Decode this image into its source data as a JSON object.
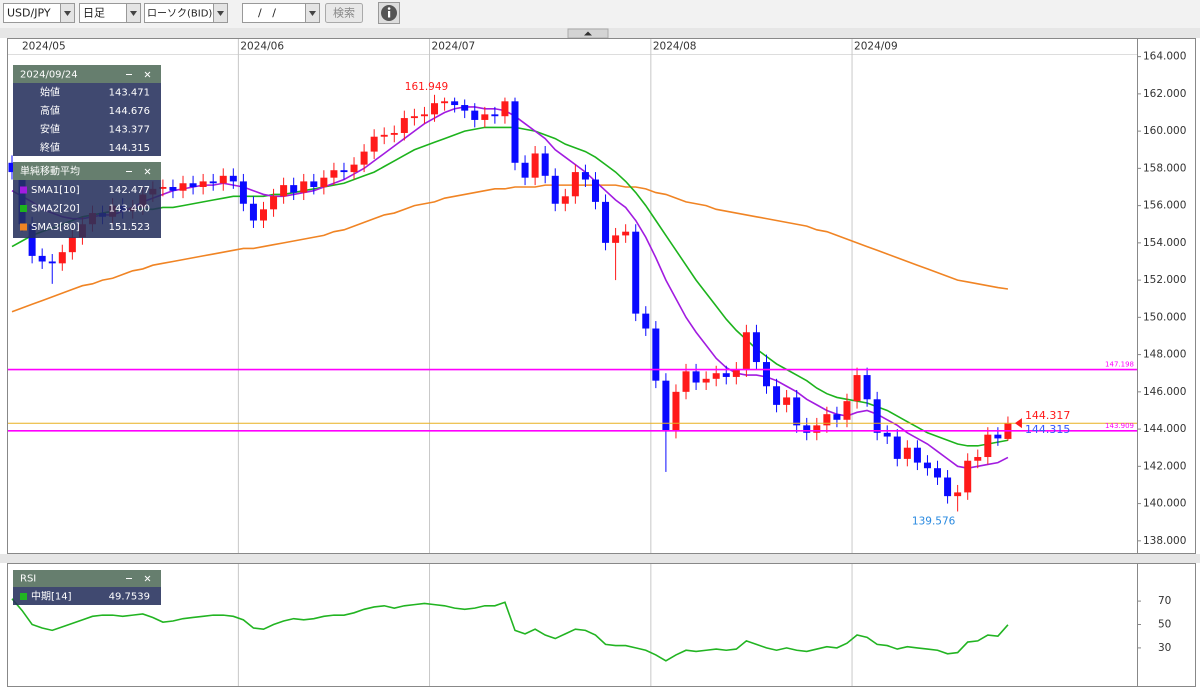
{
  "toolbar": {
    "symbol": "USD/JPY",
    "period": "日足",
    "chart_kind": "ローソク(BID)",
    "date_input": "/   /",
    "search_button": "検索"
  },
  "info_box": {
    "date": "2024/09/24",
    "open_label": "始値",
    "high_label": "高値",
    "low_label": "安値",
    "close_label": "終値"
  },
  "chart_data": [
    {
      "type": "candlestick",
      "categories": [
        "2024/05",
        null,
        null,
        null,
        null,
        null,
        null,
        null,
        null,
        null,
        null,
        null,
        null,
        null,
        null,
        null,
        null,
        null,
        null,
        null,
        null,
        null,
        null,
        "2024/06",
        null,
        null,
        null,
        null,
        null,
        null,
        null,
        null,
        null,
        null,
        null,
        null,
        null,
        null,
        null,
        null,
        null,
        null,
        "2024/07",
        null,
        null,
        null,
        null,
        null,
        null,
        null,
        null,
        null,
        null,
        null,
        null,
        null,
        null,
        null,
        null,
        null,
        null,
        null,
        null,
        null,
        "2024/08",
        null,
        null,
        null,
        null,
        null,
        null,
        null,
        null,
        null,
        null,
        null,
        null,
        null,
        null,
        null,
        null,
        null,
        null,
        null,
        "2024/09",
        null,
        null,
        null,
        null,
        null,
        null,
        null,
        null,
        null,
        null,
        null,
        null,
        null,
        null,
        null
      ],
      "open": [
        158.3,
        157.8,
        155.0,
        153.3,
        153.0,
        152.9,
        153.5,
        154.3,
        155.0,
        155.6,
        155.4,
        156.0,
        155.7,
        155.9,
        156.6,
        156.9,
        157.0,
        156.8,
        157.2,
        157.0,
        157.3,
        157.2,
        157.6,
        157.3,
        156.1,
        155.2,
        155.8,
        156.5,
        157.1,
        156.7,
        157.3,
        157.0,
        157.5,
        157.9,
        157.8,
        158.2,
        158.9,
        159.7,
        159.8,
        159.9,
        160.7,
        160.8,
        160.9,
        161.5,
        161.6,
        161.4,
        161.1,
        160.6,
        160.9,
        160.8,
        161.6,
        158.3,
        157.5,
        158.8,
        157.6,
        156.1,
        156.5,
        157.8,
        157.4,
        156.2,
        154.0,
        154.4,
        154.6,
        150.2,
        149.4,
        146.6,
        143.9,
        146.0,
        147.1,
        146.5,
        146.7,
        147.0,
        146.8,
        147.2,
        149.2,
        147.6,
        146.3,
        145.3,
        145.7,
        144.2,
        143.8,
        144.2,
        144.8,
        144.5,
        145.5,
        146.9,
        145.6,
        143.8,
        143.6,
        142.4,
        143.0,
        142.2,
        141.9,
        141.4,
        140.4,
        140.6,
        142.3,
        142.5,
        143.7,
        143.471
      ],
      "high": [
        158.7,
        158.2,
        155.4,
        153.7,
        153.4,
        153.9,
        154.7,
        155.4,
        156.0,
        156.0,
        156.4,
        156.4,
        156.3,
        157.0,
        157.3,
        157.4,
        157.4,
        157.6,
        157.6,
        157.7,
        157.7,
        158.0,
        158.0,
        157.7,
        156.5,
        156.2,
        156.9,
        157.5,
        157.5,
        157.7,
        157.7,
        157.9,
        158.3,
        158.3,
        158.6,
        159.3,
        160.1,
        160.2,
        160.3,
        161.1,
        161.2,
        161.3,
        161.949,
        161.8,
        161.8,
        161.7,
        161.5,
        161.3,
        161.3,
        161.8,
        161.8,
        158.7,
        159.2,
        159.2,
        158.0,
        156.9,
        158.2,
        158.2,
        157.8,
        156.6,
        154.8,
        155.0,
        155.0,
        150.6,
        149.8,
        147.0,
        146.4,
        147.5,
        147.5,
        147.1,
        147.4,
        147.4,
        147.6,
        149.6,
        149.6,
        148.0,
        146.7,
        146.1,
        146.1,
        144.6,
        144.6,
        145.2,
        145.2,
        145.9,
        147.3,
        147.3,
        146.0,
        144.2,
        144.0,
        143.4,
        143.4,
        142.6,
        142.3,
        141.8,
        141.0,
        142.7,
        142.9,
        144.1,
        144.1,
        144.676
      ],
      "low": [
        157.4,
        154.6,
        152.9,
        152.6,
        151.8,
        152.5,
        153.1,
        153.9,
        154.6,
        155.0,
        155.0,
        155.3,
        155.3,
        155.5,
        156.2,
        156.5,
        156.4,
        156.4,
        156.6,
        156.6,
        156.8,
        156.8,
        156.9,
        155.7,
        154.8,
        154.8,
        155.4,
        156.1,
        156.3,
        156.3,
        156.6,
        156.6,
        157.1,
        157.4,
        157.4,
        157.8,
        158.5,
        159.3,
        159.4,
        159.5,
        160.3,
        160.4,
        160.5,
        161.1,
        161.0,
        160.7,
        160.2,
        160.2,
        160.4,
        160.4,
        157.9,
        157.1,
        157.1,
        157.2,
        155.7,
        155.7,
        156.1,
        157.0,
        155.8,
        153.6,
        152.0,
        154.0,
        149.8,
        149.0,
        146.2,
        141.7,
        143.5,
        145.6,
        146.1,
        146.1,
        146.3,
        146.4,
        146.4,
        146.8,
        147.2,
        145.9,
        144.9,
        144.9,
        143.8,
        143.4,
        143.4,
        143.8,
        144.1,
        144.1,
        145.1,
        145.2,
        143.4,
        143.2,
        142.0,
        142.0,
        141.8,
        141.5,
        141.0,
        140.0,
        139.576,
        140.2,
        141.9,
        142.1,
        143.1,
        143.377
      ],
      "close": [
        157.8,
        155.0,
        153.3,
        153.0,
        152.9,
        153.5,
        154.3,
        155.0,
        155.6,
        155.4,
        156.0,
        155.7,
        155.9,
        156.6,
        156.9,
        157.0,
        156.8,
        157.2,
        157.0,
        157.3,
        157.2,
        157.6,
        157.3,
        156.1,
        155.2,
        155.8,
        156.5,
        157.1,
        156.7,
        157.3,
        157.0,
        157.5,
        157.9,
        157.8,
        158.2,
        158.9,
        159.7,
        159.8,
        159.9,
        160.7,
        160.8,
        160.9,
        161.5,
        161.6,
        161.4,
        161.1,
        160.6,
        160.9,
        160.8,
        161.6,
        158.3,
        157.5,
        158.8,
        157.6,
        156.1,
        156.5,
        157.8,
        157.4,
        156.2,
        154.0,
        154.4,
        154.6,
        150.2,
        149.4,
        146.6,
        143.9,
        146.0,
        147.1,
        146.5,
        146.7,
        147.0,
        146.8,
        147.2,
        149.2,
        147.6,
        146.3,
        145.3,
        145.7,
        144.2,
        143.8,
        144.2,
        144.8,
        144.5,
        145.5,
        146.9,
        145.6,
        143.8,
        143.6,
        142.4,
        143.0,
        142.2,
        141.9,
        141.4,
        140.4,
        140.6,
        142.3,
        142.5,
        143.7,
        143.5,
        144.315
      ],
      "up_color": "#ff1a1a",
      "down_color": "#0a0aff",
      "legend_title": "単純移動平均",
      "series": [
        {
          "name": "SMA1[10]",
          "color": "#a21ce0",
          "values": [
            156.8,
            156.5,
            156.2,
            155.8,
            155.6,
            155.4,
            155.3,
            155.3,
            155.4,
            155.5,
            155.5,
            155.7,
            155.9,
            156.2,
            156.4,
            156.6,
            156.8,
            156.9,
            157.0,
            157.1,
            157.1,
            157.2,
            157.1,
            157.0,
            156.8,
            156.6,
            156.5,
            156.5,
            156.6,
            156.7,
            156.8,
            157.0,
            157.2,
            157.4,
            157.7,
            158.0,
            158.4,
            158.8,
            159.2,
            159.6,
            160.0,
            160.4,
            160.7,
            161.0,
            161.2,
            161.3,
            161.3,
            161.2,
            161.2,
            161.1,
            160.8,
            160.4,
            160.0,
            159.6,
            159.0,
            158.6,
            158.2,
            157.8,
            157.3,
            156.8,
            156.3,
            155.9,
            155.2,
            154.3,
            153.2,
            152.0,
            151.0,
            150.0,
            149.2,
            148.5,
            147.8,
            147.3,
            147.0,
            146.9,
            146.9,
            146.8,
            146.6,
            146.3,
            146.0,
            145.6,
            145.3,
            145.0,
            144.8,
            144.7,
            144.9,
            145.0,
            144.8,
            144.5,
            144.2,
            143.8,
            143.5,
            143.2,
            142.8,
            142.4,
            142.0,
            141.9,
            142.0,
            142.1,
            142.2,
            142.477
          ]
        },
        {
          "name": "SMA2[20]",
          "color": "#1db31d",
          "values": [
            153.8,
            154.1,
            154.4,
            154.6,
            154.8,
            155.0,
            155.2,
            155.4,
            155.5,
            155.6,
            155.7,
            155.8,
            155.8,
            155.8,
            155.8,
            155.9,
            155.9,
            156.0,
            156.1,
            156.2,
            156.3,
            156.4,
            156.5,
            156.5,
            156.5,
            156.5,
            156.6,
            156.6,
            156.7,
            156.8,
            156.9,
            157.0,
            157.1,
            157.2,
            157.4,
            157.6,
            157.8,
            158.1,
            158.4,
            158.7,
            159.0,
            159.2,
            159.4,
            159.6,
            159.8,
            160.0,
            160.1,
            160.2,
            160.2,
            160.2,
            160.2,
            160.1,
            160.0,
            159.8,
            159.6,
            159.3,
            159.1,
            158.9,
            158.6,
            158.2,
            157.8,
            157.3,
            156.7,
            156.0,
            155.2,
            154.4,
            153.6,
            152.8,
            152.0,
            151.3,
            150.6,
            149.9,
            149.3,
            148.8,
            148.3,
            147.9,
            147.5,
            147.2,
            146.9,
            146.6,
            146.2,
            145.9,
            145.7,
            145.6,
            145.5,
            145.4,
            145.2,
            145.0,
            144.7,
            144.4,
            144.1,
            143.8,
            143.6,
            143.4,
            143.2,
            143.1,
            143.1,
            143.2,
            143.3,
            143.4
          ],
          "value_labels": [
            null,
            null,
            null,
            null,
            null,
            null,
            null,
            null,
            null,
            null,
            null,
            null,
            null,
            null,
            null,
            null,
            null,
            null,
            null,
            null,
            null,
            null,
            null,
            null,
            null,
            null,
            null,
            null,
            null,
            null,
            null,
            null,
            null,
            null,
            null,
            null,
            null,
            null,
            null,
            null,
            null,
            null,
            null,
            null,
            null,
            null,
            null,
            null,
            null,
            null,
            null,
            null,
            null,
            null,
            null,
            null,
            null,
            null,
            null,
            null,
            null,
            null,
            null,
            null,
            null,
            null,
            null,
            null,
            null,
            null,
            null,
            null,
            null,
            null,
            null,
            null,
            null,
            null,
            null,
            null,
            null,
            null,
            null,
            null,
            null,
            null,
            null,
            null,
            null,
            null,
            null,
            null,
            null,
            null,
            null,
            null,
            null,
            null,
            null,
            "143.400"
          ]
        },
        {
          "name": "SMA3[80]",
          "color": "#f08424",
          "values": [
            150.3,
            150.5,
            150.7,
            150.9,
            151.1,
            151.3,
            151.5,
            151.7,
            151.8,
            152.0,
            152.1,
            152.3,
            152.5,
            152.6,
            152.8,
            152.9,
            153.0,
            153.1,
            153.2,
            153.3,
            153.4,
            153.5,
            153.6,
            153.7,
            153.7,
            153.8,
            153.9,
            154.0,
            154.1,
            154.2,
            154.3,
            154.4,
            154.6,
            154.7,
            154.9,
            155.1,
            155.3,
            155.5,
            155.6,
            155.8,
            156.0,
            156.1,
            156.2,
            156.4,
            156.5,
            156.6,
            156.7,
            156.8,
            156.9,
            156.9,
            157.0,
            157.0,
            157.0,
            157.1,
            157.1,
            157.1,
            157.1,
            157.1,
            157.1,
            157.1,
            157.1,
            157.0,
            157.0,
            156.9,
            156.7,
            156.6,
            156.4,
            156.2,
            156.1,
            156.0,
            155.8,
            155.7,
            155.6,
            155.5,
            155.4,
            155.3,
            155.2,
            155.1,
            155.0,
            154.9,
            154.7,
            154.6,
            154.4,
            154.2,
            154.0,
            153.8,
            153.6,
            153.4,
            153.2,
            153.0,
            152.8,
            152.6,
            152.4,
            152.2,
            152.0,
            151.9,
            151.8,
            151.7,
            151.6,
            151.523
          ]
        }
      ],
      "ask": 144.317,
      "ask_color": "#ff1a1a",
      "bid_color": "#3355ff",
      "last_line_color": "#e8b020",
      "price_lines": [
        147.198,
        143.909
      ],
      "price_line_color": "#ff00ff",
      "high_label_color": "#ff1a1a",
      "low_label_color": "#2a8ae0",
      "ylim": [
        137.4,
        165.0
      ],
      "yticks": [
        {
          "value": 138,
          "label": "138.000"
        },
        {
          "value": 140,
          "label": "140.000"
        },
        {
          "value": 142,
          "label": "142.000"
        },
        {
          "value": 144,
          "label": "144.000"
        },
        {
          "value": 146,
          "label": "146.000"
        },
        {
          "value": 148,
          "label": "148.000"
        },
        {
          "value": 150,
          "label": "150.000"
        },
        {
          "value": 152,
          "label": "152.000"
        },
        {
          "value": 154,
          "label": "154.000"
        },
        {
          "value": 156,
          "label": "156.000"
        },
        {
          "value": 158,
          "label": "158.000"
        },
        {
          "value": 160,
          "label": "160.000"
        },
        {
          "value": 162,
          "label": "162.000"
        },
        {
          "value": 164,
          "label": "164.000"
        }
      ],
      "grid": "x"
    },
    {
      "type": "line",
      "title": "RSI",
      "series": [
        {
          "name": "中期[14]",
          "color": "#22b422",
          "values": [
            72,
            62,
            50,
            47,
            45,
            48,
            51,
            54,
            57,
            58,
            58,
            57,
            58,
            59,
            56,
            52,
            53,
            55,
            56,
            57,
            58,
            58,
            57,
            54,
            47,
            46,
            50,
            53,
            55,
            54,
            55,
            57,
            58,
            58,
            60,
            63,
            65,
            66,
            64,
            66,
            67,
            68,
            67,
            66,
            64,
            63,
            64,
            66,
            66,
            69,
            45,
            42,
            46,
            41,
            38,
            42,
            46,
            45,
            41,
            33,
            32,
            32,
            30,
            28,
            24,
            19,
            24,
            28,
            27,
            28,
            29,
            28,
            29,
            36,
            33,
            30,
            28,
            30,
            28,
            27,
            29,
            31,
            30,
            34,
            41,
            39,
            33,
            32,
            29,
            31,
            30,
            29,
            28,
            25,
            26,
            35,
            36,
            41,
            40,
            49.7539
          ]
        }
      ],
      "ylim": [
        0,
        100
      ],
      "yticks": [
        70,
        50,
        30
      ]
    }
  ]
}
